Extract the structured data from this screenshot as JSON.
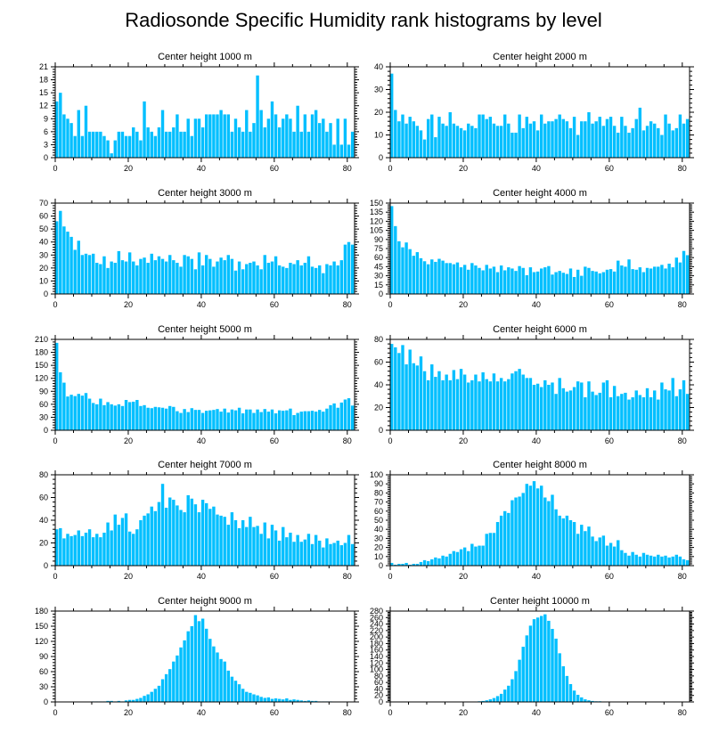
{
  "figure": {
    "title": "Radiosonde Specific Humidity rank histograms by level"
  },
  "style": {
    "bar_color": "#00BFFF",
    "axis_color": "#000000"
  },
  "chart_data": [
    {
      "type": "bar",
      "title": "Center height 1000 m",
      "xlim": [
        0,
        82
      ],
      "ylim": [
        0,
        21
      ],
      "yticks": [
        0,
        3,
        6,
        9,
        12,
        15,
        18,
        21
      ],
      "xticks": [
        0,
        20,
        40,
        60,
        80
      ],
      "values": [
        13,
        15,
        10,
        9,
        8,
        5,
        11,
        5,
        12,
        6,
        6,
        6,
        6,
        5,
        4,
        1,
        4,
        6,
        6,
        5,
        5,
        7,
        6,
        4,
        13,
        7,
        6,
        5,
        7,
        11,
        6,
        6,
        7,
        10,
        6,
        6,
        9,
        5,
        9,
        9,
        7,
        10,
        10,
        10,
        10,
        11,
        10,
        10,
        6,
        9,
        7,
        6,
        11,
        6,
        8,
        19,
        11,
        7,
        9,
        13,
        10,
        7,
        9,
        10,
        9,
        6,
        12,
        6,
        10,
        6,
        10,
        11,
        8,
        9,
        6,
        8,
        3,
        9,
        3,
        9,
        3,
        6
      ]
    },
    {
      "type": "bar",
      "title": "Center height 2000 m",
      "xlim": [
        0,
        82
      ],
      "ylim": [
        0,
        40
      ],
      "yticks": [
        0,
        10,
        20,
        30,
        40
      ],
      "xticks": [
        0,
        20,
        40,
        60,
        80
      ],
      "values": [
        37,
        21,
        16,
        19,
        15,
        18,
        16,
        14,
        12,
        8,
        17,
        19,
        9,
        18,
        15,
        14,
        20,
        15,
        14,
        13,
        12,
        15,
        14,
        13,
        19,
        19,
        17,
        18,
        15,
        14,
        14,
        19,
        15,
        11,
        11,
        19,
        13,
        18,
        15,
        16,
        12,
        19,
        15,
        16,
        16,
        17,
        19,
        17,
        16,
        13,
        18,
        10,
        16,
        16,
        20,
        15,
        16,
        18,
        14,
        17,
        18,
        14,
        11,
        18,
        14,
        11,
        13,
        17,
        22,
        12,
        14,
        16,
        15,
        13,
        10,
        19,
        15,
        12,
        13,
        19,
        15,
        17
      ]
    },
    {
      "type": "bar",
      "title": "Center height 3000 m",
      "xlim": [
        0,
        82
      ],
      "ylim": [
        0,
        70
      ],
      "yticks": [
        0,
        10,
        20,
        30,
        40,
        50,
        60,
        70
      ],
      "xticks": [
        0,
        20,
        40,
        60,
        80
      ],
      "values": [
        56,
        64,
        52,
        48,
        44,
        34,
        41,
        30,
        31,
        30,
        31,
        24,
        23,
        29,
        20,
        25,
        24,
        33,
        26,
        25,
        32,
        25,
        22,
        27,
        28,
        24,
        31,
        26,
        29,
        27,
        25,
        30,
        26,
        24,
        21,
        30,
        29,
        27,
        19,
        32,
        22,
        30,
        27,
        21,
        25,
        28,
        26,
        30,
        27,
        18,
        25,
        19,
        23,
        24,
        25,
        22,
        19,
        30,
        24,
        25,
        29,
        22,
        21,
        20,
        24,
        23,
        26,
        22,
        24,
        29,
        21,
        20,
        22,
        16,
        23,
        22,
        25,
        22,
        26,
        38,
        40,
        38
      ]
    },
    {
      "type": "bar",
      "title": "Center height 4000 m",
      "xlim": [
        0,
        82
      ],
      "ylim": [
        0,
        150
      ],
      "yticks": [
        0,
        15,
        30,
        45,
        60,
        75,
        90,
        105,
        120,
        135,
        150
      ],
      "xticks": [
        0,
        20,
        40,
        60,
        80
      ],
      "values": [
        145,
        112,
        87,
        77,
        85,
        74,
        63,
        69,
        59,
        54,
        49,
        57,
        53,
        58,
        55,
        51,
        51,
        49,
        52,
        44,
        48,
        40,
        51,
        47,
        43,
        39,
        48,
        42,
        45,
        36,
        47,
        39,
        44,
        42,
        38,
        46,
        43,
        31,
        44,
        36,
        37,
        42,
        44,
        46,
        32,
        36,
        38,
        35,
        33,
        42,
        28,
        40,
        30,
        45,
        43,
        38,
        37,
        34,
        36,
        40,
        41,
        37,
        55,
        47,
        45,
        57,
        41,
        40,
        44,
        36,
        43,
        42,
        45,
        45,
        48,
        42,
        50,
        44,
        60,
        52,
        71,
        64
      ]
    },
    {
      "type": "bar",
      "title": "Center height 5000 m",
      "xlim": [
        0,
        82
      ],
      "ylim": [
        0,
        210
      ],
      "yticks": [
        0,
        30,
        60,
        90,
        120,
        150,
        180,
        210
      ],
      "xticks": [
        0,
        20,
        40,
        60,
        80
      ],
      "values": [
        202,
        134,
        110,
        78,
        82,
        79,
        84,
        80,
        86,
        73,
        63,
        60,
        73,
        58,
        65,
        60,
        57,
        60,
        56,
        70,
        65,
        66,
        70,
        56,
        58,
        52,
        51,
        54,
        53,
        52,
        50,
        56,
        54,
        44,
        40,
        49,
        42,
        51,
        47,
        47,
        40,
        45,
        46,
        47,
        49,
        43,
        50,
        41,
        48,
        46,
        52,
        39,
        48,
        48,
        40,
        48,
        42,
        49,
        43,
        48,
        39,
        46,
        45,
        46,
        50,
        35,
        40,
        43,
        44,
        44,
        45,
        43,
        47,
        43,
        50,
        58,
        62,
        52,
        64,
        71,
        74,
        57
      ]
    },
    {
      "type": "bar",
      "title": "Center height 6000 m",
      "xlim": [
        0,
        82
      ],
      "ylim": [
        0,
        80
      ],
      "yticks": [
        0,
        20,
        40,
        60,
        80
      ],
      "xticks": [
        0,
        20,
        40,
        60,
        80
      ],
      "values": [
        76,
        73,
        68,
        75,
        58,
        71,
        59,
        57,
        65,
        52,
        44,
        58,
        47,
        52,
        44,
        49,
        44,
        53,
        45,
        54,
        49,
        42,
        44,
        49,
        43,
        51,
        45,
        43,
        50,
        43,
        46,
        43,
        45,
        50,
        52,
        54,
        49,
        46,
        46,
        40,
        41,
        38,
        44,
        40,
        42,
        32,
        46,
        37,
        34,
        35,
        38,
        43,
        42,
        29,
        43,
        34,
        31,
        33,
        42,
        44,
        29,
        39,
        30,
        32,
        33,
        27,
        29,
        35,
        31,
        29,
        37,
        29,
        35,
        27,
        42,
        36,
        35,
        46,
        30,
        36,
        44,
        32
      ]
    },
    {
      "type": "bar",
      "title": "Center height 7000 m",
      "xlim": [
        0,
        82
      ],
      "ylim": [
        0,
        80
      ],
      "yticks": [
        0,
        20,
        40,
        60,
        80
      ],
      "xticks": [
        0,
        20,
        40,
        60,
        80
      ],
      "values": [
        32,
        33,
        24,
        28,
        26,
        27,
        31,
        26,
        29,
        32,
        25,
        28,
        25,
        29,
        38,
        31,
        45,
        36,
        42,
        46,
        30,
        28,
        32,
        40,
        44,
        46,
        52,
        48,
        56,
        72,
        51,
        60,
        58,
        53,
        49,
        47,
        62,
        59,
        54,
        47,
        58,
        55,
        50,
        52,
        45,
        44,
        43,
        36,
        47,
        40,
        33,
        40,
        34,
        43,
        34,
        35,
        28,
        38,
        24,
        36,
        31,
        22,
        34,
        25,
        29,
        21,
        27,
        21,
        23,
        28,
        19,
        27,
        22,
        16,
        24,
        19,
        20,
        22,
        18,
        20,
        27,
        19
      ]
    },
    {
      "type": "bar",
      "title": "Center height 8000 m",
      "xlim": [
        0,
        82
      ],
      "ylim": [
        0,
        100
      ],
      "yticks": [
        0,
        10,
        20,
        30,
        40,
        50,
        60,
        70,
        80,
        90,
        100
      ],
      "xticks": [
        0,
        20,
        40,
        60,
        80
      ],
      "values": [
        3,
        1,
        2,
        2,
        3,
        1,
        2,
        2,
        4,
        6,
        5,
        7,
        9,
        8,
        11,
        10,
        13,
        16,
        15,
        18,
        20,
        16,
        24,
        21,
        22,
        22,
        35,
        36,
        36,
        48,
        55,
        60,
        58,
        72,
        75,
        76,
        80,
        90,
        88,
        93,
        85,
        88,
        75,
        71,
        78,
        62,
        55,
        52,
        55,
        50,
        48,
        35,
        45,
        38,
        43,
        32,
        27,
        31,
        33,
        22,
        25,
        21,
        28,
        17,
        14,
        11,
        15,
        12,
        10,
        14,
        12,
        11,
        10,
        12,
        10,
        11,
        9,
        10,
        12,
        10,
        7,
        6
      ]
    },
    {
      "type": "bar",
      "title": "Center height 9000 m",
      "xlim": [
        0,
        82
      ],
      "ylim": [
        0,
        180
      ],
      "yticks": [
        0,
        30,
        60,
        90,
        120,
        150,
        180
      ],
      "xticks": [
        0,
        20,
        40,
        60,
        80
      ],
      "values": [
        0,
        0,
        0,
        0,
        0,
        0,
        0,
        0,
        0,
        0,
        1,
        1,
        1,
        1,
        2,
        2,
        1,
        2,
        1,
        3,
        4,
        4,
        6,
        8,
        12,
        15,
        20,
        26,
        32,
        45,
        55,
        65,
        80,
        92,
        108,
        122,
        140,
        150,
        172,
        160,
        165,
        145,
        125,
        110,
        98,
        85,
        80,
        62,
        50,
        42,
        35,
        26,
        20,
        18,
        15,
        13,
        10,
        8,
        9,
        6,
        7,
        6,
        5,
        7,
        4,
        5,
        4,
        3,
        2,
        3,
        2,
        2,
        1,
        1,
        1,
        1,
        0,
        0,
        0,
        0,
        0,
        0
      ]
    },
    {
      "type": "bar",
      "title": "Center height 10000 m",
      "xlim": [
        0,
        82
      ],
      "ylim": [
        0,
        280
      ],
      "yticks": [
        0,
        20,
        40,
        60,
        80,
        100,
        120,
        140,
        160,
        180,
        200,
        220,
        240,
        260,
        280
      ],
      "xticks": [
        0,
        20,
        40,
        60,
        80
      ],
      "values": [
        0,
        0,
        0,
        0,
        0,
        0,
        0,
        0,
        0,
        0,
        0,
        0,
        0,
        0,
        0,
        0,
        0,
        0,
        0,
        0,
        0,
        1,
        1,
        1,
        2,
        3,
        5,
        8,
        12,
        18,
        25,
        38,
        50,
        70,
        95,
        130,
        170,
        205,
        235,
        255,
        260,
        265,
        270,
        250,
        225,
        195,
        150,
        110,
        80,
        55,
        35,
        22,
        14,
        8,
        5,
        3,
        2,
        2,
        1,
        1,
        1,
        1,
        0,
        0,
        0,
        0,
        0,
        0,
        0,
        0,
        0,
        0,
        0,
        0,
        0,
        0,
        0,
        0,
        0,
        0,
        0,
        0
      ]
    }
  ]
}
